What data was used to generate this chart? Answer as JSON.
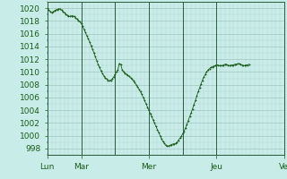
{
  "background_color": "#c8ece8",
  "plot_bg_color": "#c8ece8",
  "line_color": "#1a5c1a",
  "marker_color": "#1a5c1a",
  "xtick_labels": [
    "Lun",
    "Mar",
    "Mer",
    "Jeu",
    "Ve"
  ],
  "ylim": [
    997,
    1021
  ],
  "pressure_data": [
    1020.0,
    1019.7,
    1019.5,
    1019.3,
    1019.4,
    1019.6,
    1019.7,
    1019.8,
    1019.9,
    1019.9,
    1019.7,
    1019.5,
    1019.3,
    1019.1,
    1018.9,
    1018.8,
    1018.7,
    1018.8,
    1018.8,
    1018.7,
    1018.5,
    1018.3,
    1018.1,
    1017.9,
    1017.6,
    1017.2,
    1016.7,
    1016.2,
    1015.7,
    1015.2,
    1014.7,
    1014.1,
    1013.6,
    1013.0,
    1012.4,
    1011.8,
    1011.2,
    1010.7,
    1010.2,
    1009.8,
    1009.4,
    1009.1,
    1008.9,
    1008.7,
    1008.6,
    1008.7,
    1008.9,
    1009.2,
    1009.6,
    1010.0,
    1010.3,
    1011.3,
    1011.2,
    1010.4,
    1010.0,
    1009.8,
    1009.7,
    1009.5,
    1009.3,
    1009.1,
    1008.9,
    1008.6,
    1008.3,
    1008.0,
    1007.7,
    1007.3,
    1006.9,
    1006.5,
    1006.0,
    1005.5,
    1005.0,
    1004.5,
    1004.0,
    1003.5,
    1003.0,
    1002.5,
    1002.0,
    1001.5,
    1001.0,
    1000.5,
    1000.0,
    999.5,
    999.1,
    998.8,
    998.5,
    998.4,
    998.4,
    998.5,
    998.6,
    998.7,
    998.7,
    998.8,
    999.0,
    999.3,
    999.6,
    999.9,
    1000.3,
    1000.7,
    1001.2,
    1001.8,
    1002.4,
    1003.0,
    1003.6,
    1004.2,
    1004.9,
    1005.5,
    1006.2,
    1006.9,
    1007.5,
    1008.1,
    1008.7,
    1009.2,
    1009.6,
    1010.0,
    1010.3,
    1010.5,
    1010.7,
    1010.8,
    1010.9,
    1011.0,
    1011.1,
    1011.1,
    1011.0,
    1011.0,
    1011.0,
    1011.1,
    1011.2,
    1011.2,
    1011.1,
    1011.0,
    1011.0,
    1011.1,
    1011.1,
    1011.2,
    1011.2,
    1011.3,
    1011.3,
    1011.2,
    1011.1,
    1011.0,
    1011.0,
    1011.1,
    1011.1,
    1011.2
  ]
}
